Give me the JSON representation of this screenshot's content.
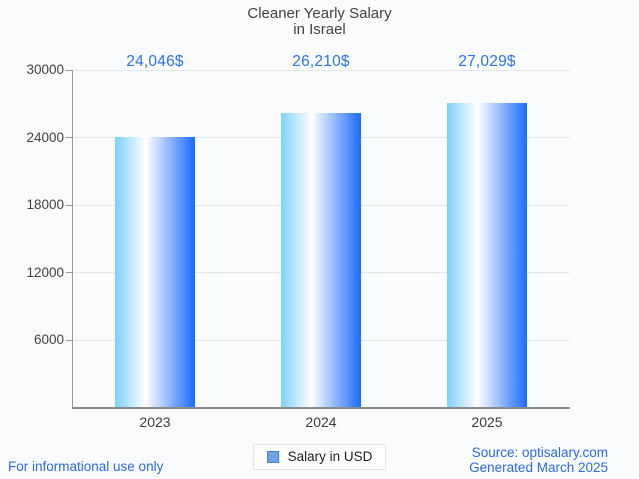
{
  "title": {
    "line1": "Cleaner Yearly Salary",
    "line2": "in Israel"
  },
  "chart_data": {
    "type": "bar",
    "title": "Cleaner Yearly Salary in Israel",
    "categories": [
      "2023",
      "2024",
      "2025"
    ],
    "values": [
      24046,
      26210,
      27029
    ],
    "value_labels": [
      "24,046$",
      "26,210$",
      "27,029$"
    ],
    "series": [
      {
        "name": "Salary in USD",
        "values": [
          24046,
          26210,
          27029
        ]
      }
    ],
    "xlabel": "",
    "ylabel": "",
    "ylim": [
      0,
      30000
    ],
    "yticks": [
      6000,
      12000,
      18000,
      24000,
      30000
    ],
    "grid": true,
    "legend_position": "bottom-center"
  },
  "legend": {
    "label": "Salary in USD"
  },
  "footer": {
    "disclaimer": "For informational use only",
    "source": "Source: optisalary.com",
    "generated": "Generated March 2025"
  },
  "colors": {
    "value_label_blue": "#2b72ef",
    "footer_blue": "#2a6ae4",
    "bar_gradient_left": "#7dd0fa",
    "bar_gradient_mid": "#ffffff",
    "bar_gradient_right": "#1a6bfe",
    "legend_marker_fill": "#6fa3e3",
    "legend_marker_border": "#4a7ec8",
    "gridline": "#e4e7eb",
    "axis": "#8c8c8c",
    "text": "#424242"
  }
}
